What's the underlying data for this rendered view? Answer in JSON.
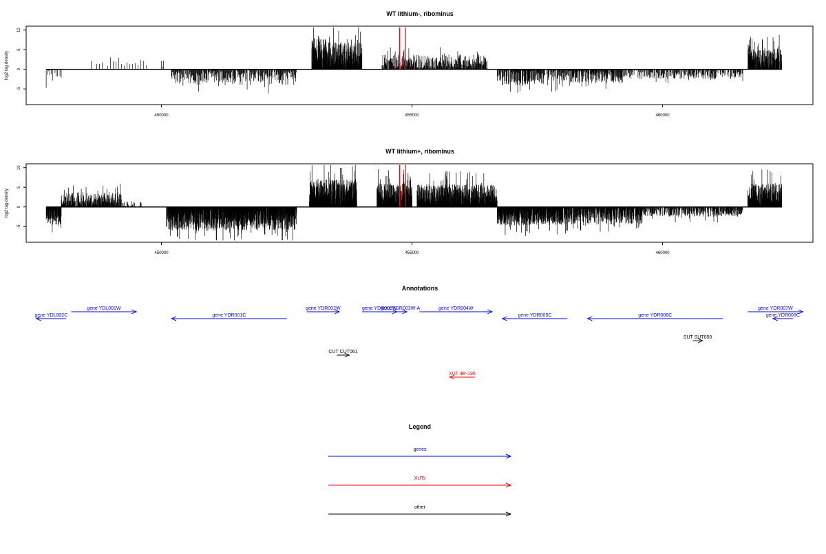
{
  "chart_data": [
    {
      "type": "bar",
      "title": "WT lithium-, ribominus",
      "ylabel": "log2 tag density",
      "xlabel": "",
      "xlim": [
        447300,
        463000
      ],
      "ylim": [
        -9,
        11
      ],
      "yticks": [
        -5,
        0,
        5,
        10
      ],
      "xticks": [
        450000,
        455000,
        460000
      ],
      "data_range": [
        447700,
        462380
      ],
      "segments": [
        {
          "from": 447700,
          "to": 448000,
          "mean": -1.5,
          "amp": 1.5,
          "spacing": 25
        },
        {
          "from": 448600,
          "to": 449700,
          "mean": 1.5,
          "amp": 1.7,
          "spacing": 55
        },
        {
          "from": 450000,
          "to": 450050,
          "mean": 1.5,
          "amp": 1.0,
          "spacing": 20
        },
        {
          "from": 450200,
          "to": 452700,
          "mean": -2.0,
          "amp": 2.0,
          "spacing": 10
        },
        {
          "from": 453000,
          "to": 453300,
          "mean": 4.0,
          "amp": 4.5,
          "spacing": 3
        },
        {
          "from": 453300,
          "to": 454000,
          "mean": 3.5,
          "amp": 3.5,
          "spacing": 4
        },
        {
          "from": 454400,
          "to": 456500,
          "mean": 1.8,
          "amp": 2.0,
          "spacing": 8
        },
        {
          "from": 456700,
          "to": 458000,
          "mean": -1.8,
          "amp": 2.3,
          "spacing": 8
        },
        {
          "from": 458000,
          "to": 459200,
          "mean": -1.5,
          "amp": 2.0,
          "spacing": 7
        },
        {
          "from": 459200,
          "to": 461600,
          "mean": -1.0,
          "amp": 1.5,
          "spacing": 10
        },
        {
          "from": 461700,
          "to": 462380,
          "mean": 2.5,
          "amp": 3.0,
          "spacing": 4
        }
      ],
      "markers": [
        454750,
        454870
      ],
      "marker_color": "#ff0000"
    },
    {
      "type": "bar",
      "title": "WT lithium+, ribominus",
      "ylabel": "log2 tag density",
      "xlabel": "",
      "xlim": [
        447300,
        463000
      ],
      "ylim": [
        -9,
        11
      ],
      "yticks": [
        -5,
        0,
        5,
        10
      ],
      "xticks": [
        450000,
        455000,
        460000
      ],
      "data_range": [
        447700,
        462380
      ],
      "segments": [
        {
          "from": 447700,
          "to": 448000,
          "mean": -2.5,
          "amp": 2.0,
          "spacing": 4
        },
        {
          "from": 448000,
          "to": 449200,
          "mean": 1.7,
          "amp": 2.0,
          "spacing": 5
        },
        {
          "from": 449200,
          "to": 449600,
          "mean": 0.5,
          "amp": 1.0,
          "spacing": 12
        },
        {
          "from": 450100,
          "to": 452700,
          "mean": -3.0,
          "amp": 3.0,
          "spacing": 3
        },
        {
          "from": 452950,
          "to": 453900,
          "mean": 3.5,
          "amp": 3.5,
          "spacing": 3
        },
        {
          "from": 454300,
          "to": 455000,
          "mean": 3.0,
          "amp": 3.0,
          "spacing": 3
        },
        {
          "from": 455100,
          "to": 456700,
          "mean": 2.8,
          "amp": 3.0,
          "spacing": 3
        },
        {
          "from": 456700,
          "to": 458000,
          "mean": -2.2,
          "amp": 2.5,
          "spacing": 3
        },
        {
          "from": 458000,
          "to": 459600,
          "mean": -2.0,
          "amp": 2.5,
          "spacing": 4
        },
        {
          "from": 459600,
          "to": 461600,
          "mean": -1.0,
          "amp": 1.5,
          "spacing": 6
        },
        {
          "from": 461700,
          "to": 462380,
          "mean": 3.0,
          "amp": 3.0,
          "spacing": 3
        }
      ],
      "markers": [
        454750,
        454870
      ],
      "marker_color": "#ff0000"
    }
  ],
  "annotations": {
    "title": "Annotations",
    "features": [
      {
        "label": "gene YDL002C",
        "from": 448100,
        "to": 447500,
        "row": 1,
        "color": "#0000ff"
      },
      {
        "label": "gene YDL001W",
        "from": 448200,
        "to": 449500,
        "row": 0,
        "color": "#0000ff"
      },
      {
        "label": "gene YDR001C",
        "from": 452500,
        "to": 450200,
        "row": 1,
        "color": "#0000ff"
      },
      {
        "label": "gene YDR002W",
        "from": 452900,
        "to": 453550,
        "row": 0,
        "color": "#0000ff"
      },
      {
        "label": "gene YDR003W",
        "from": 454000,
        "to": 454700,
        "row": 0,
        "color": "#0000ff"
      },
      {
        "label": "gene YDR003W-A",
        "from": 454630,
        "to": 454900,
        "row": 0,
        "color": "#0000ff"
      },
      {
        "label": "gene YDR004W",
        "from": 455150,
        "to": 456600,
        "row": 0,
        "color": "#0000ff"
      },
      {
        "label": "gene YDR005C",
        "from": 458100,
        "to": 456800,
        "row": 1,
        "color": "#0000ff"
      },
      {
        "label": "gene YDR006C",
        "from": 461200,
        "to": 458500,
        "row": 1,
        "color": "#0000ff"
      },
      {
        "label": "gene YDR007W",
        "from": 461700,
        "to": 462800,
        "row": 0,
        "color": "#0000ff"
      },
      {
        "label": "gene YDR008C",
        "from": 462600,
        "to": 462200,
        "row": 1,
        "color": "#0000ff"
      },
      {
        "label": "SUT SUT050",
        "from": 460600,
        "to": 460800,
        "row": 2,
        "color": "#000000"
      },
      {
        "label": "CUT CUT061",
        "from": 453500,
        "to": 453750,
        "row": 3,
        "color": "#000000"
      },
      {
        "label": "XUT 4R-195",
        "from": 456250,
        "to": 455750,
        "row": 4,
        "color": "#ff0000"
      }
    ]
  },
  "legend": {
    "title": "Legend",
    "items": [
      {
        "label": "genes",
        "color": "#0000ff"
      },
      {
        "label": "XUTs",
        "color": "#ff0000"
      },
      {
        "label": "other",
        "color": "#000000"
      }
    ]
  }
}
